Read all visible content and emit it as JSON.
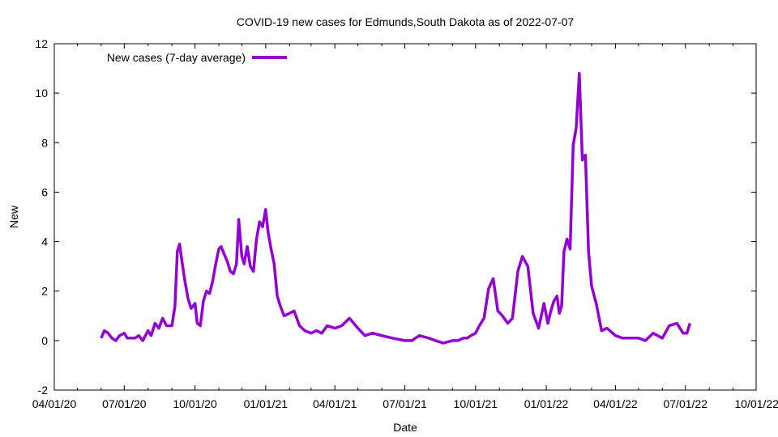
{
  "chart_data": {
    "type": "line",
    "title": "COVID-19 new cases for Edmunds,South Dakota as of 2022-07-07",
    "xlabel": "Date",
    "ylabel": "New",
    "ylim": [
      -2,
      12
    ],
    "xlim": [
      "2020-04-01",
      "2022-10-01"
    ],
    "yticks": [
      "-2",
      "0",
      "2",
      "4",
      "6",
      "8",
      "10",
      "12"
    ],
    "xticks": [
      "04/01/20",
      "07/01/20",
      "10/01/20",
      "01/01/21",
      "04/01/21",
      "07/01/21",
      "10/01/21",
      "01/01/22",
      "04/01/22",
      "07/01/22",
      "10/01/22"
    ],
    "legend_position": "top-left",
    "grid": false,
    "series": [
      {
        "name": "New cases (7-day average)",
        "color": "#9400d3",
        "x": [
          "2020-06-01",
          "2020-06-05",
          "2020-06-10",
          "2020-06-15",
          "2020-06-20",
          "2020-06-25",
          "2020-07-01",
          "2020-07-05",
          "2020-07-10",
          "2020-07-15",
          "2020-07-20",
          "2020-07-25",
          "2020-08-01",
          "2020-08-05",
          "2020-08-10",
          "2020-08-15",
          "2020-08-20",
          "2020-08-25",
          "2020-09-01",
          "2020-09-05",
          "2020-09-08",
          "2020-09-11",
          "2020-09-14",
          "2020-09-18",
          "2020-09-22",
          "2020-09-26",
          "2020-10-01",
          "2020-10-04",
          "2020-10-08",
          "2020-10-12",
          "2020-10-16",
          "2020-10-20",
          "2020-10-24",
          "2020-10-28",
          "2020-11-01",
          "2020-11-04",
          "2020-11-08",
          "2020-11-12",
          "2020-11-16",
          "2020-11-20",
          "2020-11-24",
          "2020-11-27",
          "2020-12-01",
          "2020-12-04",
          "2020-12-08",
          "2020-12-12",
          "2020-12-16",
          "2020-12-20",
          "2020-12-24",
          "2020-12-28",
          "2021-01-01",
          "2021-01-04",
          "2021-01-08",
          "2021-01-12",
          "2021-01-16",
          "2021-01-20",
          "2021-01-25",
          "2021-02-01",
          "2021-02-07",
          "2021-02-14",
          "2021-02-21",
          "2021-03-01",
          "2021-03-08",
          "2021-03-15",
          "2021-03-22",
          "2021-04-01",
          "2021-04-10",
          "2021-04-20",
          "2021-05-01",
          "2021-05-10",
          "2021-05-20",
          "2021-06-01",
          "2021-06-15",
          "2021-07-01",
          "2021-07-10",
          "2021-07-20",
          "2021-08-01",
          "2021-08-10",
          "2021-08-20",
          "2021-09-01",
          "2021-09-08",
          "2021-09-15",
          "2021-09-20",
          "2021-09-25",
          "2021-10-01",
          "2021-10-06",
          "2021-10-12",
          "2021-10-18",
          "2021-10-24",
          "2021-10-30",
          "2021-11-05",
          "2021-11-12",
          "2021-11-18",
          "2021-11-25",
          "2021-12-01",
          "2021-12-08",
          "2021-12-15",
          "2021-12-22",
          "2021-12-29",
          "2022-01-03",
          "2022-01-07",
          "2022-01-11",
          "2022-01-15",
          "2022-01-18",
          "2022-01-21",
          "2022-01-24",
          "2022-01-28",
          "2022-02-01",
          "2022-02-05",
          "2022-02-09",
          "2022-02-13",
          "2022-02-17",
          "2022-02-21",
          "2022-02-25",
          "2022-03-01",
          "2022-03-07",
          "2022-03-14",
          "2022-03-21",
          "2022-04-01",
          "2022-04-10",
          "2022-04-20",
          "2022-05-01",
          "2022-05-10",
          "2022-05-20",
          "2022-06-01",
          "2022-06-10",
          "2022-06-20",
          "2022-06-28",
          "2022-07-03",
          "2022-07-07"
        ],
        "y": [
          0.1,
          0.4,
          0.3,
          0.1,
          0.0,
          0.2,
          0.3,
          0.1,
          0.1,
          0.1,
          0.2,
          0.0,
          0.4,
          0.2,
          0.7,
          0.5,
          0.9,
          0.6,
          0.6,
          1.4,
          3.6,
          3.9,
          3.2,
          2.4,
          1.7,
          1.3,
          1.5,
          0.7,
          0.6,
          1.6,
          2.0,
          1.9,
          2.4,
          3.1,
          3.7,
          3.8,
          3.5,
          3.2,
          2.8,
          2.7,
          3.1,
          4.9,
          3.4,
          3.1,
          3.8,
          3.0,
          2.8,
          4.1,
          4.8,
          4.6,
          5.3,
          4.4,
          3.7,
          3.1,
          1.8,
          1.4,
          1.0,
          1.1,
          1.2,
          0.6,
          0.4,
          0.3,
          0.4,
          0.3,
          0.6,
          0.5,
          0.6,
          0.9,
          0.5,
          0.2,
          0.3,
          0.2,
          0.1,
          0.0,
          0.0,
          0.2,
          0.1,
          0.0,
          -0.1,
          0.0,
          0.0,
          0.1,
          0.1,
          0.2,
          0.3,
          0.6,
          0.9,
          2.1,
          2.5,
          1.2,
          1.0,
          0.7,
          0.9,
          2.8,
          3.4,
          3.0,
          1.1,
          0.5,
          1.5,
          0.7,
          1.2,
          1.6,
          1.8,
          1.1,
          1.4,
          3.6,
          4.1,
          3.7,
          7.9,
          8.6,
          10.8,
          7.3,
          7.5,
          3.6,
          2.2,
          1.5,
          0.4,
          0.5,
          0.2,
          0.1,
          0.1,
          0.1,
          0.0,
          0.3,
          0.1,
          0.6,
          0.7,
          0.3,
          0.3,
          0.7
        ]
      }
    ]
  }
}
